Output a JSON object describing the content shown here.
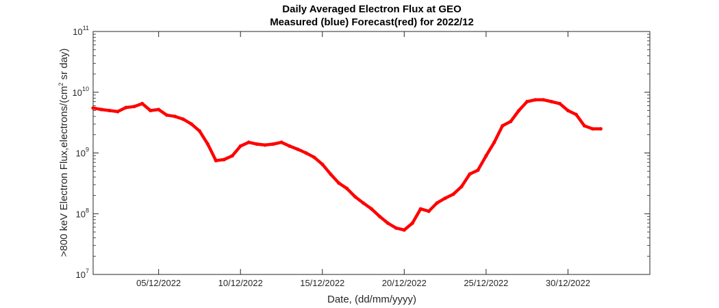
{
  "chart_data": {
    "type": "line",
    "title": "Daily Averaged Electron Flux at GEO",
    "subtitle": "Measured (blue) Forecast(red) for 2022/12",
    "xlabel": "Date, (dd/mm/yyyy)",
    "ylabel_prefix": ">800 keV Electron Flux,electrons/(cm",
    "ylabel_sup": "2",
    "ylabel_suffix": " sr day)",
    "y_scale": "log",
    "ylim": [
      10000000,
      100000000000
    ],
    "y_ticks": [
      {
        "value": 10000000,
        "base": "10",
        "exp": "7"
      },
      {
        "value": 100000000,
        "base": "10",
        "exp": "8"
      },
      {
        "value": 1000000000,
        "base": "10",
        "exp": "9"
      },
      {
        "value": 10000000000,
        "base": "10",
        "exp": "10"
      },
      {
        "value": 100000000000,
        "base": "10",
        "exp": "11"
      }
    ],
    "xlim": [
      "2022-12-01",
      "2023-01-04"
    ],
    "x_ticks": [
      {
        "date": "2022-12-05",
        "label": "05/12/2022"
      },
      {
        "date": "2022-12-10",
        "label": "10/12/2022"
      },
      {
        "date": "2022-12-15",
        "label": "15/12/2022"
      },
      {
        "date": "2022-12-20",
        "label": "20/12/2022"
      },
      {
        "date": "2022-12-25",
        "label": "25/12/2022"
      },
      {
        "date": "2022-12-30",
        "label": "30/12/2022"
      }
    ],
    "grid": false,
    "series": [
      {
        "color": "#ff0000",
        "x": [
          "2022-12-01",
          "2022-12-01T12:00",
          "2022-12-02",
          "2022-12-02T12:00",
          "2022-12-03",
          "2022-12-03T12:00",
          "2022-12-04",
          "2022-12-04T12:00",
          "2022-12-05",
          "2022-12-05T12:00",
          "2022-12-06",
          "2022-12-06T12:00",
          "2022-12-07",
          "2022-12-07T12:00",
          "2022-12-08",
          "2022-12-08T12:00",
          "2022-12-09",
          "2022-12-09T12:00",
          "2022-12-10",
          "2022-12-10T12:00",
          "2022-12-11",
          "2022-12-11T12:00",
          "2022-12-12",
          "2022-12-12T12:00",
          "2022-12-13",
          "2022-12-13T12:00",
          "2022-12-14",
          "2022-12-14T12:00",
          "2022-12-15",
          "2022-12-15T12:00",
          "2022-12-16",
          "2022-12-16T12:00",
          "2022-12-17",
          "2022-12-17T12:00",
          "2022-12-18",
          "2022-12-18T12:00",
          "2022-12-19",
          "2022-12-19T12:00",
          "2022-12-20",
          "2022-12-20T12:00",
          "2022-12-21",
          "2022-12-21T12:00",
          "2022-12-22",
          "2022-12-22T12:00",
          "2022-12-23",
          "2022-12-23T12:00",
          "2022-12-24",
          "2022-12-24T12:00",
          "2022-12-25",
          "2022-12-25T12:00",
          "2022-12-26",
          "2022-12-26T12:00",
          "2022-12-27",
          "2022-12-27T12:00",
          "2022-12-28",
          "2022-12-28T12:00",
          "2022-12-29",
          "2022-12-29T12:00",
          "2022-12-30",
          "2022-12-30T12:00",
          "2022-12-31",
          "2022-12-31T12:00",
          "2023-01-01"
        ],
        "y": [
          5500000000,
          5200000000,
          5000000000,
          4800000000,
          5600000000,
          5800000000,
          6500000000,
          5000000000,
          5200000000,
          4200000000,
          4000000000,
          3600000000,
          3000000000,
          2300000000,
          1400000000,
          750000000,
          780000000,
          900000000,
          1300000000,
          1500000000,
          1400000000,
          1350000000,
          1400000000,
          1500000000,
          1300000000,
          1150000000,
          1000000000,
          850000000,
          650000000,
          450000000,
          320000000,
          260000000,
          190000000,
          150000000,
          120000000,
          90000000,
          70000000,
          58000000,
          54000000,
          70000000,
          120000000,
          110000000,
          150000000,
          180000000,
          210000000,
          280000000,
          450000000,
          520000000,
          900000000,
          1500000000,
          2800000000,
          3300000000,
          5000000000,
          7000000000,
          7500000000,
          7500000000,
          7000000000,
          6500000000,
          5000000000,
          4300000000,
          2800000000,
          2500000000,
          2500000000
        ]
      }
    ]
  }
}
